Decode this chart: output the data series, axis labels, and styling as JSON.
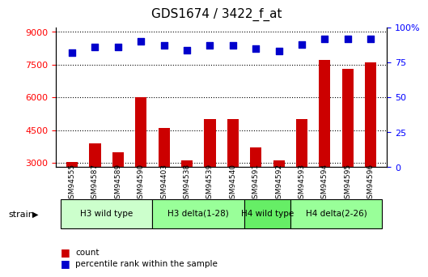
{
  "title": "GDS1674 / 3422_f_at",
  "samples": [
    "GSM94555",
    "GSM94587",
    "GSM94589",
    "GSM94590",
    "GSM94403",
    "GSM94538",
    "GSM94539",
    "GSM94540",
    "GSM94591",
    "GSM94592",
    "GSM94593",
    "GSM94594",
    "GSM94595",
    "GSM94596"
  ],
  "counts": [
    3050,
    3900,
    3500,
    6000,
    4600,
    3100,
    5000,
    5000,
    3700,
    3100,
    5000,
    7700,
    7300,
    7600
  ],
  "percentiles": [
    82,
    86,
    86,
    90,
    87,
    84,
    87,
    87,
    85,
    83,
    88,
    92,
    92,
    92
  ],
  "groups": [
    {
      "label": "H3 wild type",
      "start": 0,
      "end": 3,
      "color": "#ccffcc"
    },
    {
      "label": "H3 delta(1-28)",
      "start": 4,
      "end": 7,
      "color": "#99ff99"
    },
    {
      "label": "H4 wild type",
      "start": 8,
      "end": 9,
      "color": "#66ee66"
    },
    {
      "label": "H4 delta(2-26)",
      "start": 10,
      "end": 13,
      "color": "#99ff99"
    }
  ],
  "ylim_left": [
    2800,
    9200
  ],
  "ylim_right": [
    0,
    100
  ],
  "yticks_left": [
    3000,
    4500,
    6000,
    7500,
    9000
  ],
  "yticks_right": [
    0,
    25,
    50,
    75,
    100
  ],
  "bar_color": "#cc0000",
  "dot_color": "#0000cc",
  "xlabel": "strain",
  "legend_items": [
    "count",
    "percentile rank within the sample"
  ]
}
